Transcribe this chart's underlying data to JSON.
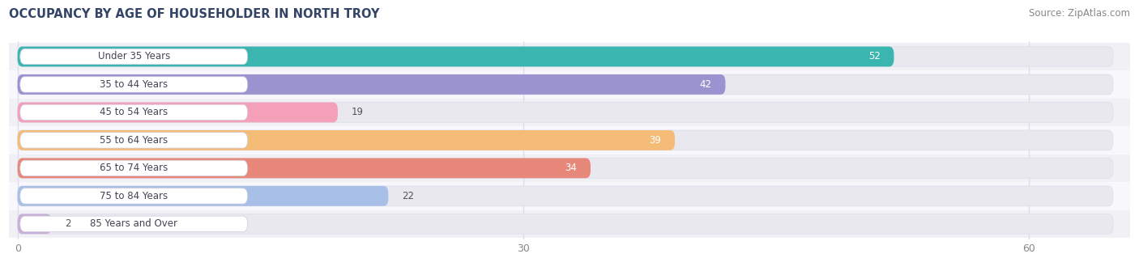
{
  "title": "OCCUPANCY BY AGE OF HOUSEHOLDER IN NORTH TROY",
  "source": "Source: ZipAtlas.com",
  "categories": [
    "Under 35 Years",
    "35 to 44 Years",
    "45 to 54 Years",
    "55 to 64 Years",
    "65 to 74 Years",
    "75 to 84 Years",
    "85 Years and Over"
  ],
  "values": [
    52,
    42,
    19,
    39,
    34,
    22,
    2
  ],
  "bar_colors": [
    "#3ab5b0",
    "#9b93d0",
    "#f4a0b8",
    "#f5bc78",
    "#e8887a",
    "#a8c0e8",
    "#c9b0d8"
  ],
  "xlim_max": 65,
  "xticks": [
    0,
    30,
    60
  ],
  "title_fontsize": 10.5,
  "source_fontsize": 8.5,
  "label_fontsize": 8.5,
  "value_fontsize": 8.5,
  "bg_color": "#ffffff",
  "bar_bg_color": "#e8e8ee",
  "label_box_color": "#ffffff",
  "grid_color": "#ddddee",
  "value_color_inside": "#ffffff",
  "value_color_outside": "#555555",
  "value_threshold": 25
}
